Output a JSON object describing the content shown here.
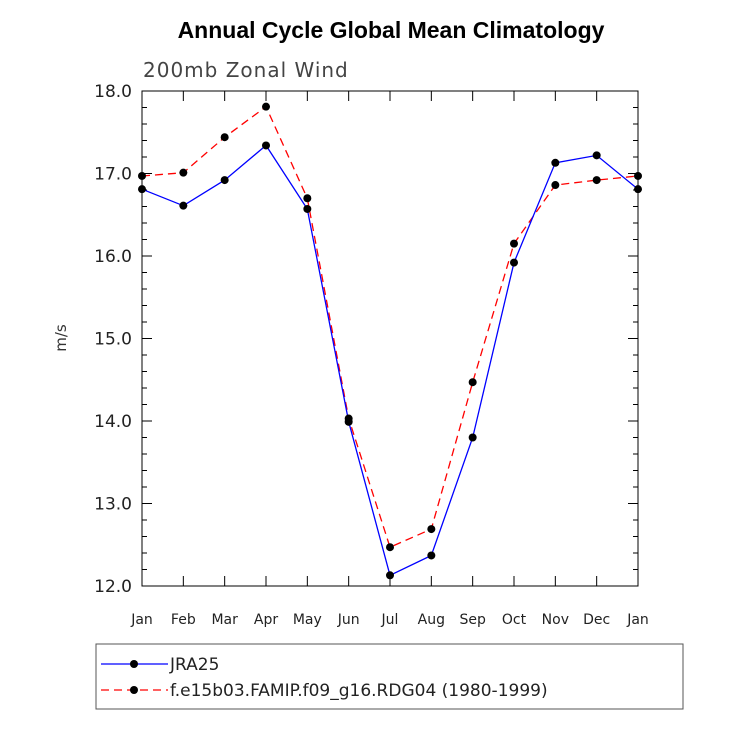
{
  "chart_data": {
    "type": "line",
    "title": "Annual Cycle Global Mean Climatology",
    "subtitle": "200mb Zonal Wind",
    "xlabel": "",
    "ylabel": "m/s",
    "categories": [
      "Jan",
      "Feb",
      "Mar",
      "Apr",
      "May",
      "Jun",
      "Jul",
      "Aug",
      "Sep",
      "Oct",
      "Nov",
      "Dec",
      "Jan"
    ],
    "ylim": [
      12.0,
      18.0
    ],
    "yticks": [
      12.0,
      13.0,
      14.0,
      15.0,
      16.0,
      17.0,
      18.0
    ],
    "ytick_labels": [
      "12.0",
      "13.0",
      "14.0",
      "15.0",
      "16.0",
      "17.0",
      "18.0"
    ],
    "grid": false,
    "legend_position": "bottom",
    "series": [
      {
        "name": "JRA25",
        "color": "#0000ff",
        "line_style": "solid",
        "marker": "filled-circle",
        "marker_color": "#000000",
        "values": [
          16.81,
          16.61,
          16.92,
          17.34,
          16.57,
          13.99,
          12.13,
          12.37,
          13.8,
          15.92,
          17.13,
          17.22,
          16.81
        ]
      },
      {
        "name": "f.e15b03.FAMIP.f09_g16.RDG04 (1980-1999)",
        "color": "#ff0000",
        "line_style": "dashed",
        "marker": "filled-circle",
        "marker_color": "#000000",
        "values": [
          16.97,
          17.01,
          17.44,
          17.81,
          16.7,
          14.03,
          12.47,
          12.69,
          14.47,
          16.15,
          16.86,
          16.92,
          16.97
        ]
      }
    ]
  }
}
